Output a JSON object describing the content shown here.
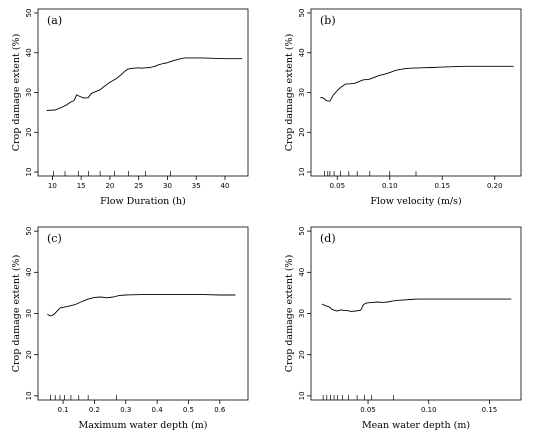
{
  "chart_data": [
    {
      "type": "line",
      "panel_label": "(a)",
      "xlabel": "Flow Duration (h)",
      "ylabel": "Crop damage extent (%)",
      "xlim": [
        7.5,
        44
      ],
      "ylim": [
        9,
        51
      ],
      "xticks": [
        10,
        15,
        20,
        25,
        30,
        35,
        40
      ],
      "xtick_labels": [
        "10",
        "15",
        "20",
        "25",
        "30",
        "35",
        "40"
      ],
      "yticks": [
        10,
        20,
        30,
        40,
        50
      ],
      "ytick_labels": [
        "10",
        "20",
        "30",
        "40",
        "50"
      ],
      "x": [
        9,
        10.5,
        11.5,
        12.5,
        13.2,
        13.8,
        14.2,
        14.8,
        15.5,
        16.2,
        16.8,
        17.5,
        18.2,
        19.0,
        19.8,
        20.5,
        21.2,
        21.8,
        22.5,
        23.0,
        23.5,
        24.2,
        25.0,
        25.5,
        26.2,
        27.0,
        27.8,
        28.5,
        29.3,
        30.0,
        30.8,
        31.5,
        32.3,
        33.0,
        34.0,
        36.0,
        38.0,
        40.0,
        42.0,
        43.0
      ],
      "y": [
        25.5,
        25.6,
        26.2,
        26.9,
        27.6,
        28.0,
        29.4,
        29.0,
        28.6,
        28.7,
        29.8,
        30.2,
        30.6,
        31.5,
        32.4,
        33.0,
        33.6,
        34.3,
        35.2,
        35.8,
        36.0,
        36.1,
        36.2,
        36.1,
        36.2,
        36.3,
        36.6,
        37.0,
        37.3,
        37.5,
        37.9,
        38.2,
        38.5,
        38.7,
        38.7,
        38.7,
        38.6,
        38.5,
        38.5,
        38.5
      ],
      "rug": [
        10.2,
        12.2,
        14.5,
        16.3,
        18.3,
        20.8,
        23.2,
        26.2,
        30.5
      ],
      "grid": false
    },
    {
      "type": "line",
      "panel_label": "(b)",
      "xlabel": "Flow velocity (m/s)",
      "ylabel": "Crop damage extent (%)",
      "xlim": [
        0.025,
        0.225
      ],
      "ylim": [
        9,
        51
      ],
      "xticks": [
        0.05,
        0.1,
        0.15,
        0.2
      ],
      "xtick_labels": [
        "0.05",
        "0.10",
        "0.15",
        "0.20"
      ],
      "yticks": [
        10,
        20,
        30,
        40,
        50
      ],
      "ytick_labels": [
        "10",
        "20",
        "30",
        "40",
        "50"
      ],
      "x": [
        0.034,
        0.037,
        0.04,
        0.043,
        0.046,
        0.05,
        0.054,
        0.058,
        0.062,
        0.066,
        0.07,
        0.075,
        0.08,
        0.085,
        0.09,
        0.095,
        0.1,
        0.105,
        0.11,
        0.115,
        0.12,
        0.13,
        0.14,
        0.15,
        0.16,
        0.17,
        0.18,
        0.19,
        0.2,
        0.21,
        0.218
      ],
      "y": [
        28.8,
        28.6,
        27.9,
        27.8,
        29.3,
        30.5,
        31.4,
        32.1,
        32.2,
        32.3,
        32.7,
        33.2,
        33.3,
        33.8,
        34.3,
        34.6,
        35.0,
        35.5,
        35.8,
        36.0,
        36.1,
        36.2,
        36.3,
        36.4,
        36.5,
        36.6,
        36.6,
        36.6,
        36.6,
        36.6,
        36.6
      ],
      "rug": [
        0.038,
        0.041,
        0.043,
        0.047,
        0.053,
        0.061,
        0.069,
        0.081,
        0.1,
        0.125
      ],
      "grid": false
    },
    {
      "type": "line",
      "panel_label": "(c)",
      "xlabel": "Maximum water depth (m)",
      "ylabel": "Crop damage extent (%)",
      "xlim": [
        0.02,
        0.69
      ],
      "ylim": [
        9,
        51
      ],
      "xticks": [
        0.1,
        0.2,
        0.3,
        0.4,
        0.5,
        0.6
      ],
      "xtick_labels": [
        "0.1",
        "0.2",
        "0.3",
        "0.4",
        "0.5",
        "0.6"
      ],
      "yticks": [
        10,
        20,
        30,
        40,
        50
      ],
      "ytick_labels": [
        "10",
        "20",
        "30",
        "40",
        "50"
      ],
      "x": [
        0.05,
        0.06,
        0.07,
        0.08,
        0.09,
        0.1,
        0.12,
        0.14,
        0.16,
        0.18,
        0.2,
        0.22,
        0.24,
        0.26,
        0.28,
        0.3,
        0.35,
        0.4,
        0.45,
        0.5,
        0.55,
        0.6,
        0.65
      ],
      "y": [
        29.8,
        29.4,
        29.7,
        30.5,
        31.3,
        31.5,
        31.8,
        32.2,
        32.9,
        33.5,
        33.9,
        34.0,
        33.8,
        34.0,
        34.4,
        34.5,
        34.6,
        34.6,
        34.6,
        34.6,
        34.6,
        34.5,
        34.5
      ],
      "rug": [
        0.06,
        0.075,
        0.09,
        0.105,
        0.125,
        0.15,
        0.18,
        0.27
      ],
      "grid": false
    },
    {
      "type": "line",
      "panel_label": "(d)",
      "xlabel": "Mean water depth (m)",
      "ylabel": "Crop damage extent (%)",
      "xlim": [
        0.003,
        0.176
      ],
      "ylim": [
        9,
        51
      ],
      "xticks": [
        0.05,
        0.1,
        0.15
      ],
      "xtick_labels": [
        "0.05",
        "0.10",
        "0.15"
      ],
      "yticks": [
        10,
        20,
        30,
        40,
        50
      ],
      "ytick_labels": [
        "10",
        "20",
        "30",
        "40",
        "50"
      ],
      "x": [
        0.012,
        0.015,
        0.018,
        0.02,
        0.022,
        0.025,
        0.028,
        0.03,
        0.033,
        0.036,
        0.04,
        0.044,
        0.046,
        0.048,
        0.05,
        0.054,
        0.058,
        0.062,
        0.066,
        0.07,
        0.075,
        0.08,
        0.085,
        0.09,
        0.1,
        0.11,
        0.12,
        0.13,
        0.14,
        0.15,
        0.16,
        0.168
      ],
      "y": [
        32.3,
        31.9,
        31.6,
        31.1,
        30.8,
        30.6,
        30.9,
        30.7,
        30.7,
        30.5,
        30.6,
        30.8,
        32.1,
        32.5,
        32.6,
        32.7,
        32.8,
        32.7,
        32.8,
        33.0,
        33.2,
        33.3,
        33.4,
        33.5,
        33.5,
        33.5,
        33.5,
        33.5,
        33.5,
        33.5,
        33.5,
        33.5
      ],
      "rug": [
        0.013,
        0.016,
        0.019,
        0.022,
        0.025,
        0.029,
        0.034,
        0.041,
        0.047,
        0.053,
        0.071
      ],
      "grid": false
    }
  ]
}
